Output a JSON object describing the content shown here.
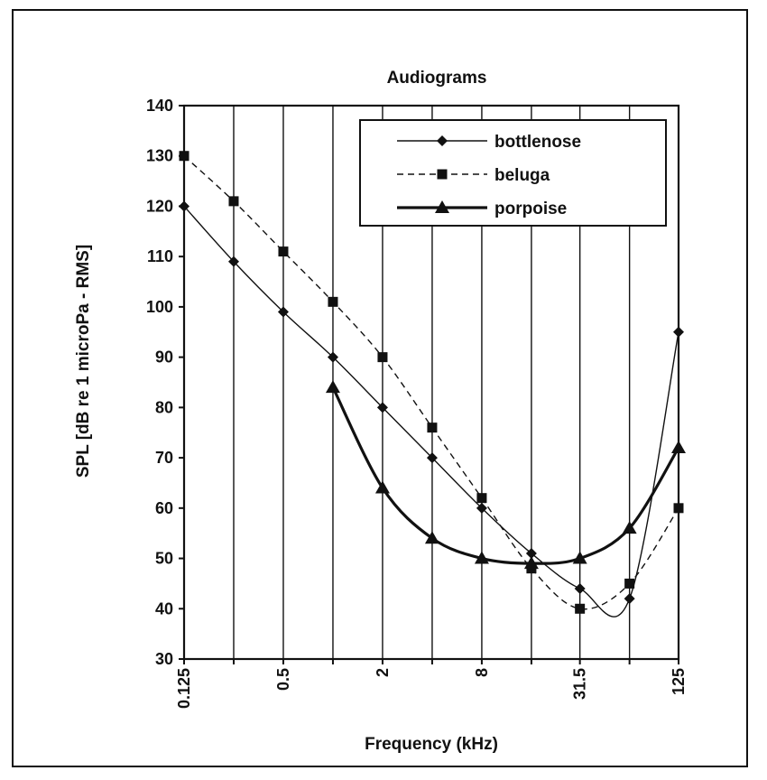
{
  "chart_data": {
    "type": "line",
    "title": "Audiograms",
    "xlabel": "Frequency (kHz)",
    "ylabel": "SPL [dB re 1 microPa - RMS]",
    "x_scale": "log2",
    "x_ticks": [
      0.125,
      0.25,
      0.5,
      1,
      2,
      4,
      8,
      16,
      31.5,
      63,
      125
    ],
    "x_tick_labels": [
      "0.125",
      "0.5",
      "2",
      "8",
      "31.5",
      "125"
    ],
    "x_tick_label_values": [
      0.125,
      0.5,
      2,
      8,
      31.5,
      125
    ],
    "ylim": [
      30,
      140
    ],
    "y_ticks": [
      30,
      40,
      50,
      60,
      70,
      80,
      90,
      100,
      110,
      120,
      130,
      140
    ],
    "grid": "vertical",
    "legend_position": "top-right",
    "series": [
      {
        "name": "bottlenose",
        "marker": "diamond",
        "line": "thin-solid",
        "color": "#111111",
        "x": [
          0.125,
          0.25,
          0.5,
          1,
          2,
          4,
          8,
          16,
          31.5,
          63,
          125
        ],
        "y": [
          120,
          109,
          99,
          90,
          80,
          70,
          60,
          51,
          44,
          42,
          95
        ]
      },
      {
        "name": "beluga",
        "marker": "square",
        "line": "dashed",
        "color": "#111111",
        "x": [
          0.125,
          0.25,
          0.5,
          1,
          2,
          4,
          8,
          16,
          31.5,
          63,
          125
        ],
        "y": [
          130,
          121,
          111,
          101,
          90,
          76,
          62,
          48,
          40,
          45,
          60
        ]
      },
      {
        "name": "porpoise",
        "marker": "triangle",
        "line": "thick-solid",
        "color": "#111111",
        "x": [
          1,
          2,
          4,
          8,
          16,
          31.5,
          63,
          125
        ],
        "y": [
          84,
          64,
          54,
          50,
          49,
          50,
          56,
          72
        ]
      }
    ]
  }
}
